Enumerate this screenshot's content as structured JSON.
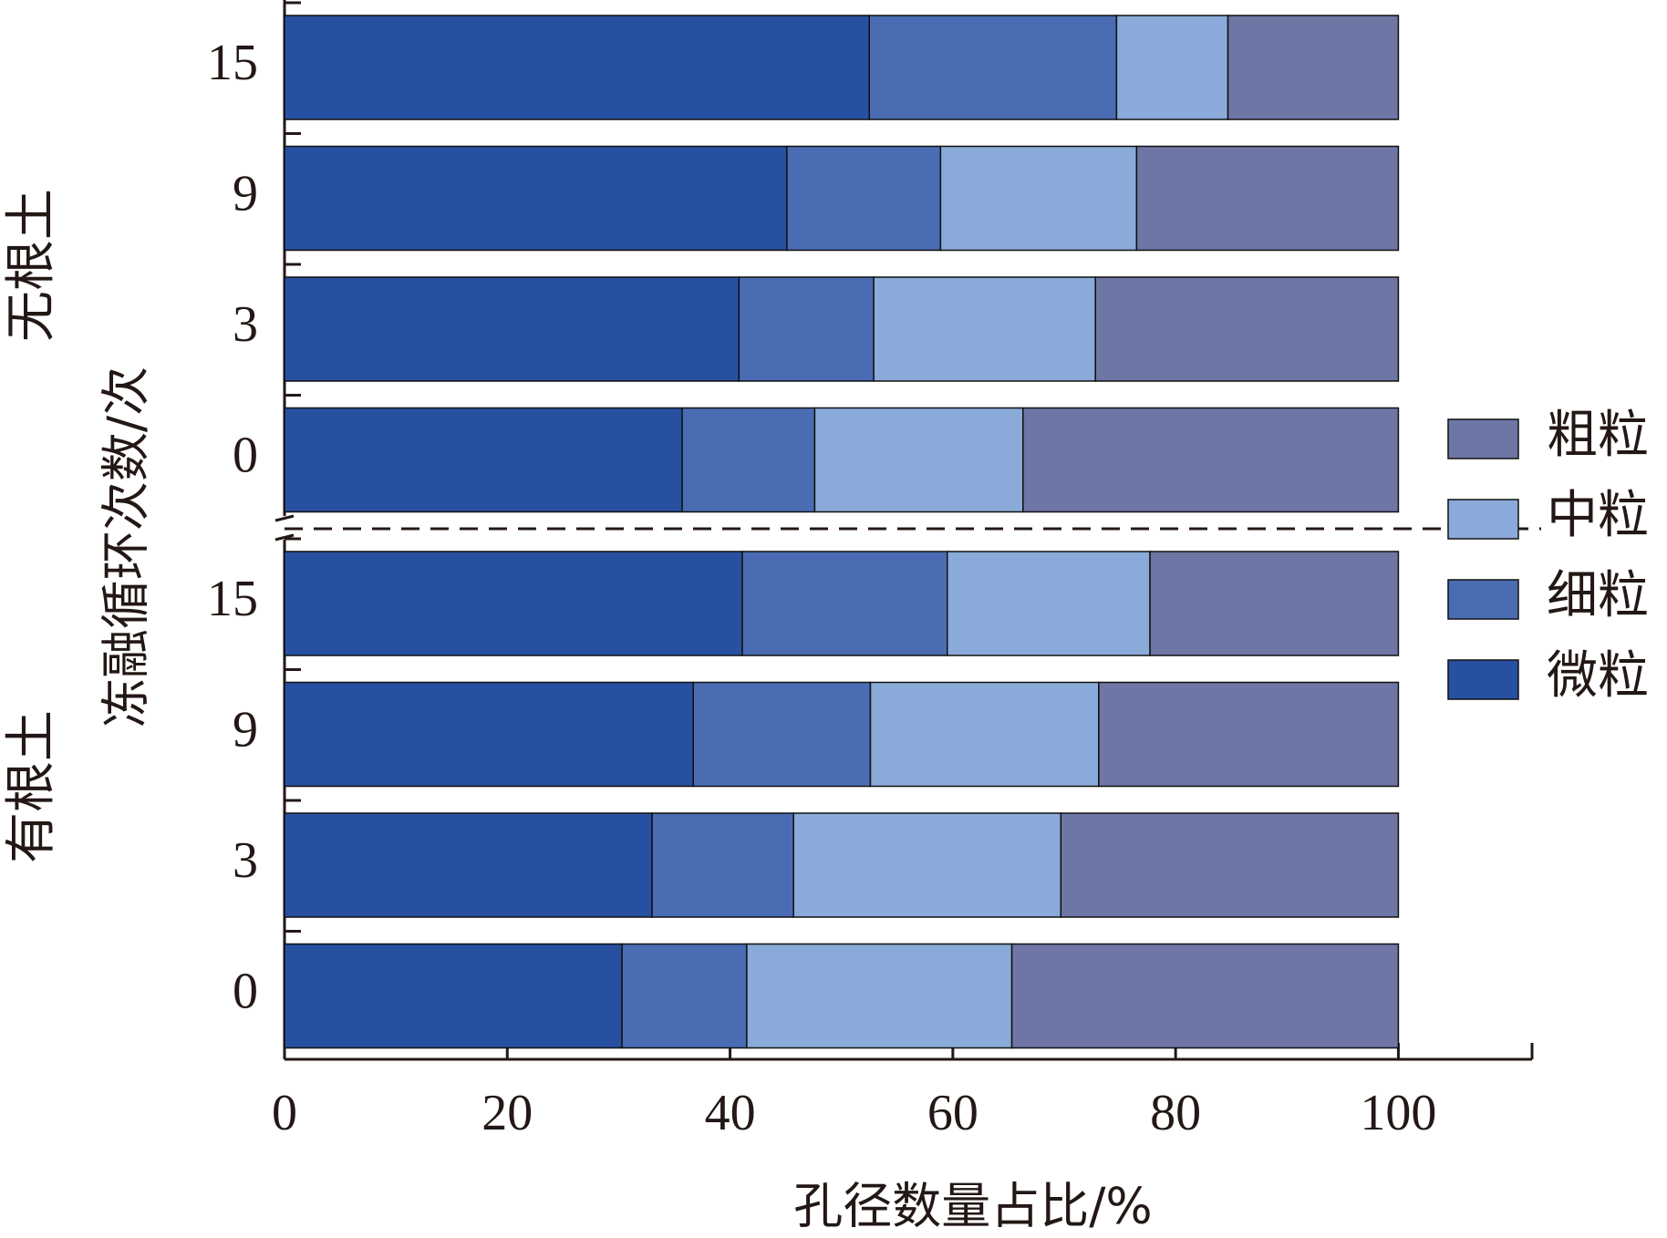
{
  "chart_data": {
    "type": "stacked-bar-horizontal",
    "xlabel": "孔径数量占比/%",
    "ylabel": "冻融循环次数/次",
    "groups": [
      {
        "label": "无根土",
        "categories": [
          "15",
          "9",
          "3",
          "0"
        ]
      },
      {
        "label": "有根土",
        "categories": [
          "15",
          "9",
          "3",
          "0"
        ]
      }
    ],
    "series": [
      {
        "name": "微粒",
        "color": "#2850a0",
        "values": [
          52.5,
          45.1,
          40.8,
          35.7,
          41.1,
          36.7,
          33.0,
          30.3
        ]
      },
      {
        "name": "细粒",
        "color": "#4a6cb3",
        "values": [
          22.2,
          13.8,
          12.1,
          11.9,
          18.4,
          15.9,
          12.7,
          11.2
        ]
      },
      {
        "name": "中粒",
        "color": "#8aaad9",
        "values": [
          10.0,
          17.6,
          19.9,
          18.7,
          18.2,
          20.5,
          24.0,
          23.8
        ]
      },
      {
        "name": "粗粒",
        "color": "#6e76a6",
        "values": [
          15.3,
          23.5,
          27.2,
          33.7,
          22.3,
          26.9,
          30.3,
          34.7
        ]
      }
    ],
    "xlim": [
      0,
      112
    ],
    "xticks": [
      0,
      20,
      40,
      60,
      80,
      100
    ],
    "legend": "right"
  }
}
